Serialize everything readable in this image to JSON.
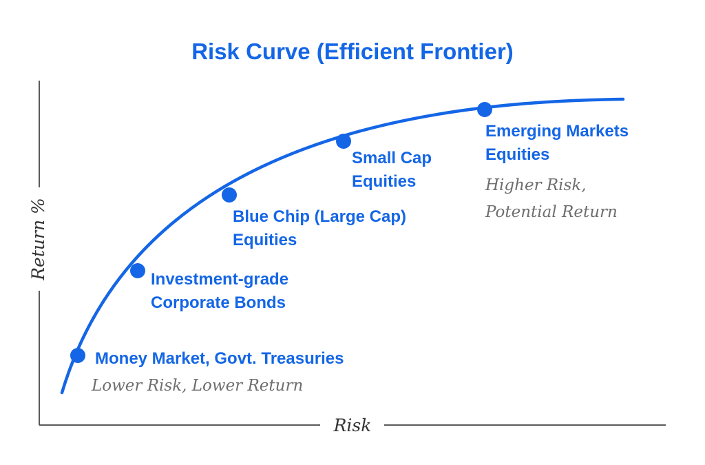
{
  "chart_data": {
    "type": "line",
    "title": "Risk Curve (Efficient Frontier)",
    "xlabel": "Risk",
    "ylabel": "Return %",
    "series": [
      {
        "points": [
          {
            "label": [
              "Money Market, Govt. Treasuries"
            ],
            "note": [
              "Lower Risk, Lower Return"
            ]
          },
          {
            "label": [
              "Investment-grade",
              "Corporate Bonds"
            ]
          },
          {
            "label": [
              "Blue Chip (Large Cap)",
              "Equities"
            ]
          },
          {
            "label": [
              "Small Cap",
              "Equities"
            ]
          },
          {
            "label": [
              "Emerging Markets",
              "Equities"
            ],
            "note": [
              "Higher Risk,",
              "Potential Return"
            ]
          }
        ]
      }
    ],
    "grid": false,
    "legend": "none",
    "colors": {
      "accent": "#1466e6",
      "axis": "#5a5a5a",
      "note": "#6e6e6e"
    }
  }
}
